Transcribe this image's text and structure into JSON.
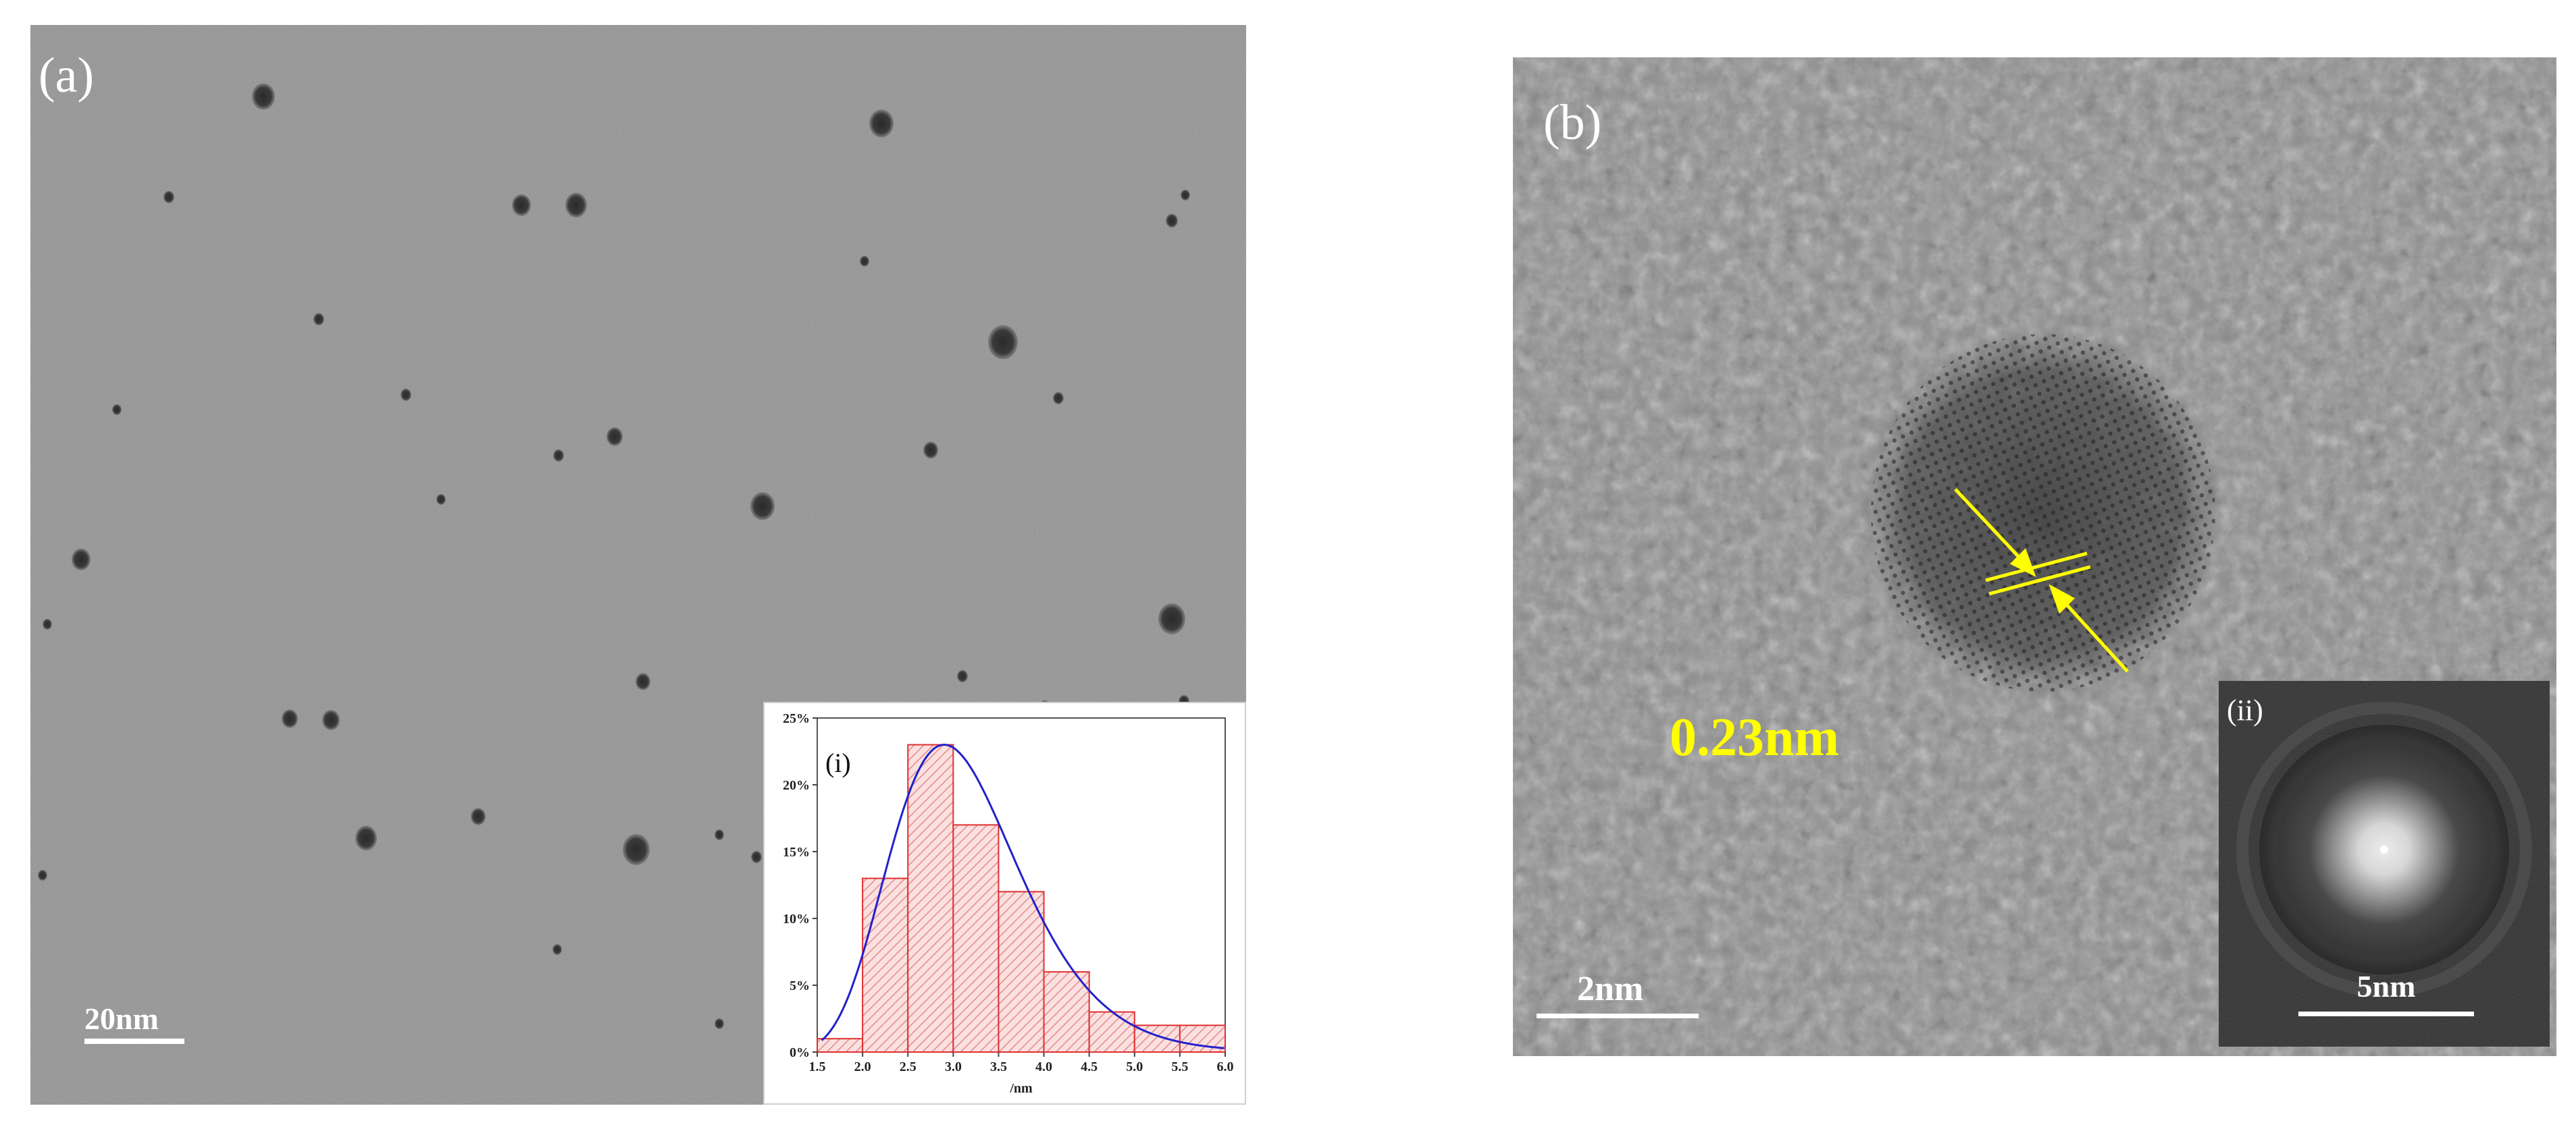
{
  "panel_a": {
    "label": "(a)",
    "scale_bar": "20nm",
    "inset": {
      "label": "(i)",
      "chart_data": {
        "type": "bar",
        "bins": [
          [
            1.5,
            2.0
          ],
          [
            2.0,
            2.5
          ],
          [
            2.5,
            3.0
          ],
          [
            3.0,
            3.5
          ],
          [
            3.5,
            4.0
          ],
          [
            4.0,
            4.5
          ],
          [
            4.5,
            5.0
          ],
          [
            5.0,
            5.5
          ],
          [
            5.5,
            6.0
          ]
        ],
        "values": [
          1,
          13,
          23,
          17,
          12,
          6,
          3,
          2,
          2
        ],
        "fit_curve": {
          "type": "line",
          "color": "#2222cc",
          "peak_x": 2.9,
          "peak_y": 23
        },
        "xlabel": "/nm",
        "xlim": [
          1.5,
          6.0
        ],
        "ylim": [
          0,
          25
        ],
        "xticks": [
          "1.5",
          "2.0",
          "2.5",
          "3.0",
          "3.5",
          "4.0",
          "4.5",
          "5.0",
          "5.5",
          "6.0"
        ],
        "yticks": [
          "0%",
          "5%",
          "10%",
          "15%",
          "20%",
          "25%"
        ],
        "bar_color": "#e03030"
      }
    }
  },
  "panel_b": {
    "label": "(b)",
    "lattice_spacing": "0.23nm",
    "scale_bar": "2nm",
    "inset": {
      "label": "(ii)",
      "scale_bar": "5nm"
    }
  },
  "colors": {
    "annotation": "#ffff00",
    "fit_curve": "#2222cc",
    "histogram": "#e03030"
  }
}
